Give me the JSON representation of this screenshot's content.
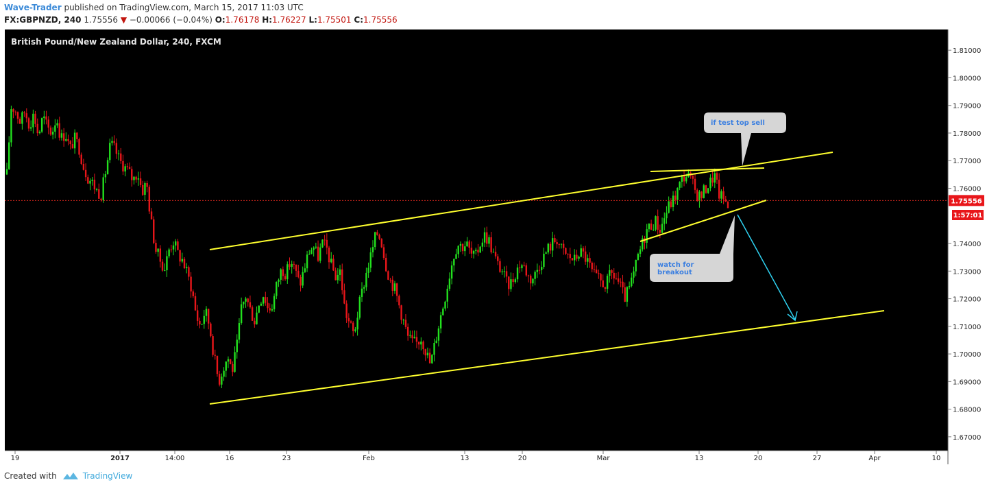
{
  "header": {
    "author": "Wave-Trader",
    "published": "published on TradingView.com, March 15, 2017 11:03 UTC",
    "symbol": "FX:GBPNZD, 240",
    "last": "1.75556",
    "change": "−0.00066 (−0.04%)",
    "open_label": "O:",
    "open": "1.76178",
    "high_label": "H:",
    "high": "1.76227",
    "low_label": "L:",
    "low": "1.75501",
    "close_label": "C:",
    "close": "1.75556"
  },
  "footer": {
    "created_with": "Created with",
    "brand": "TradingView"
  },
  "colors": {
    "background": "#000000",
    "up": "#22e01e",
    "down": "#e8161a",
    "trendline": "#ffff2e",
    "arrow": "#2fd3f2",
    "price_line": "#d0261c",
    "callout": "#d6d6d6",
    "callout_text": "#3b7fe0"
  },
  "chart_data": {
    "type": "candlestick",
    "title": "British Pound/New Zealand Dollar, 240, FXCM",
    "ylim": [
      1.665,
      1.8175
    ],
    "y_ticks": [
      "1.81000",
      "1.80000",
      "1.79000",
      "1.78000",
      "1.77000",
      "1.76000",
      "1.74000",
      "1.73000",
      "1.72000",
      "1.71000",
      "1.70000",
      "1.69000",
      "1.68000",
      "1.67000"
    ],
    "x_ticks": [
      "19",
      "2017",
      "14:00",
      "16",
      "23",
      "Feb",
      "13",
      "20",
      "Mar",
      "13",
      "20",
      "27",
      "Apr",
      "10"
    ],
    "current_price_label": "1.75556",
    "countdown_label": "1:57:01",
    "current_price": 1.75556,
    "ohlc_close_path": [
      1.765,
      1.79,
      1.788,
      1.784,
      1.788,
      1.783,
      1.787,
      1.779,
      1.786,
      1.782,
      1.78,
      1.786,
      1.778,
      1.78,
      1.774,
      1.778,
      1.775,
      1.768,
      1.764,
      1.762,
      1.759,
      1.758,
      1.767,
      1.776,
      1.774,
      1.77,
      1.768,
      1.766,
      1.763,
      1.766,
      1.759,
      1.762,
      1.748,
      1.738,
      1.734,
      1.731,
      1.738,
      1.741,
      1.736,
      1.734,
      1.729,
      1.724,
      1.714,
      1.71,
      1.716,
      1.71,
      1.699,
      1.69,
      1.695,
      1.699,
      1.694,
      1.702,
      1.716,
      1.721,
      1.716,
      1.712,
      1.719,
      1.722,
      1.716,
      1.718,
      1.726,
      1.731,
      1.729,
      1.734,
      1.73,
      1.725,
      1.731,
      1.737,
      1.739,
      1.735,
      1.74,
      1.738,
      1.732,
      1.728,
      1.73,
      1.716,
      1.711,
      1.707,
      1.716,
      1.724,
      1.731,
      1.737,
      1.744,
      1.742,
      1.733,
      1.727,
      1.724,
      1.718,
      1.712,
      1.706,
      1.704,
      1.704,
      1.706,
      1.701,
      1.696,
      1.704,
      1.712,
      1.719,
      1.727,
      1.735,
      1.74,
      1.739,
      1.74,
      1.736,
      1.735,
      1.74,
      1.743,
      1.741,
      1.736,
      1.732,
      1.73,
      1.725,
      1.726,
      1.73,
      1.733,
      1.731,
      1.727,
      1.728,
      1.732,
      1.735,
      1.738,
      1.74,
      1.742,
      1.738,
      1.736,
      1.735,
      1.734,
      1.737,
      1.736,
      1.733,
      1.729,
      1.727,
      1.726,
      1.725,
      1.729,
      1.728,
      1.725,
      1.72,
      1.723,
      1.728,
      1.735,
      1.74,
      1.745,
      1.747,
      1.748,
      1.745,
      1.75,
      1.754,
      1.756,
      1.76,
      1.764,
      1.765,
      1.762,
      1.758,
      1.757,
      1.76,
      1.762,
      1.765,
      1.758,
      1.756,
      1.755
    ]
  },
  "annotations": {
    "top_callout": "if test top sell",
    "bottom_callout_line1": "watch for",
    "bottom_callout_line2": "breakout"
  }
}
